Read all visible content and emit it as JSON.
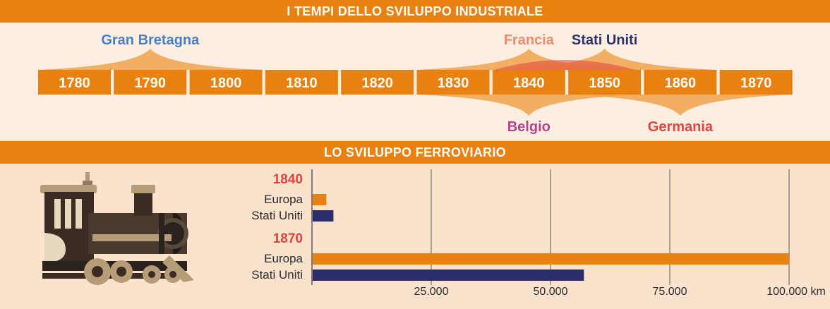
{
  "sections": {
    "timeline_title": "I TEMPI DELLO SVILUPPO INDUSTRIALE",
    "railway_title": "LO SVILUPPO FERROVIARIO"
  },
  "timeline": {
    "decades": [
      "1780",
      "1790",
      "1800",
      "1810",
      "1820",
      "1830",
      "1840",
      "1850",
      "1860",
      "1870"
    ],
    "countries": [
      {
        "name": "Gran Bretagna",
        "from": "1780",
        "to": "1800",
        "side": "top",
        "color": "#4a7fc1"
      },
      {
        "name": "Francia",
        "from": "1830",
        "to": "1850",
        "side": "top",
        "color": "#ef8a6f"
      },
      {
        "name": "Stati Uniti",
        "from": "1840",
        "to": "1860",
        "side": "top",
        "color": "#2c2f6e"
      },
      {
        "name": "Belgio",
        "from": "1830",
        "to": "1850",
        "side": "bottom",
        "color": "#b4438e"
      },
      {
        "name": "Germania",
        "from": "1850",
        "to": "1870",
        "side": "bottom",
        "color": "#e4433f"
      }
    ],
    "colors": {
      "box": "#e8810f",
      "box_text": "#ffffff",
      "wing": "#f0a24a"
    }
  },
  "chart_data": {
    "type": "bar",
    "orientation": "horizontal",
    "groups": [
      {
        "label": "1840",
        "bars": [
          {
            "name": "Europa",
            "value": 3000
          },
          {
            "name": "Stati Uniti",
            "value": 4500
          }
        ]
      },
      {
        "label": "1870",
        "bars": [
          {
            "name": "Europa",
            "value": 100000
          },
          {
            "name": "Stati Uniti",
            "value": 57000
          }
        ]
      }
    ],
    "series_colors": {
      "Europa": "#e8810f",
      "Stati Uniti": "#2a2c6b"
    },
    "x_ticks": [
      {
        "value": 25000,
        "label": "25.000"
      },
      {
        "value": 50000,
        "label": "50.000"
      },
      {
        "value": 75000,
        "label": "75.000"
      },
      {
        "value": 100000,
        "label": "100.000 km"
      }
    ],
    "xlim": [
      0,
      100000
    ],
    "grid": true
  },
  "illustration": {
    "icon": "locomotive-icon"
  }
}
